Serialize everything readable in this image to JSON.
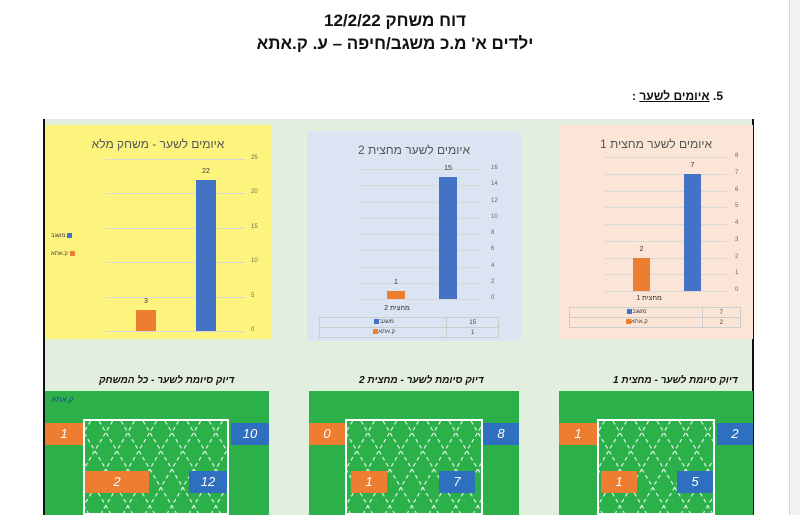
{
  "document": {
    "title": "דוח משחק 12/2/22",
    "subtitle": "ילדים א' מ.כ משגב/חיפה – ע. ק.אתא",
    "section_number": "5.",
    "section_title": "איומים לשער",
    "section_colon": ":"
  },
  "team_labels": {
    "home": "משגב",
    "away": "ק.אתא"
  },
  "colors": {
    "home": "#4472c4",
    "away": "#ed7d31",
    "pitch": "#2bb04a"
  },
  "chart_data": [
    {
      "type": "bar",
      "title": "איומים לשער - משחק מלא",
      "categories": [
        "ק.אתא",
        "משגב"
      ],
      "values": [
        3,
        22
      ],
      "ylim": [
        0,
        25
      ],
      "yticks": [
        "0",
        "5",
        "10",
        "15",
        "20",
        "25"
      ],
      "legend": [
        "משגב",
        "ק.אתא"
      ],
      "background": "#fdf47d"
    },
    {
      "type": "bar",
      "title": "איומים לשער מחצית 2",
      "categories": [
        "ק.אתא",
        "משגב"
      ],
      "values": [
        1,
        15
      ],
      "ylim": [
        0,
        16
      ],
      "yticks": [
        "0",
        "2",
        "4",
        "6",
        "8",
        "10",
        "12",
        "14",
        "16"
      ],
      "category_label": "מחצית 2",
      "table": [
        [
          "משגב",
          "15"
        ],
        [
          "ק.אתא",
          "1"
        ]
      ],
      "background": "#dbe4f2"
    },
    {
      "type": "bar",
      "title": "איומים לשער מחצית 1",
      "categories": [
        "ק.אתא",
        "משגב"
      ],
      "values": [
        2,
        7
      ],
      "ylim": [
        0,
        8
      ],
      "yticks": [
        "0",
        "1",
        "2",
        "3",
        "4",
        "5",
        "6",
        "7",
        "8"
      ],
      "category_label": "מחצית 1",
      "table": [
        [
          "משגב",
          "7"
        ],
        [
          "ק.אתא",
          "2"
        ]
      ],
      "background": "#fbe5d6"
    }
  ],
  "pitches": [
    {
      "title": "דיוק סיומת לשער - כל המשחק",
      "away_off": "1",
      "home_off": "10",
      "away_on": "2",
      "home_on": "12"
    },
    {
      "title": "דיוק סיומת לשער - מחצית 2",
      "away_off": "0",
      "home_off": "8",
      "away_on": "1",
      "home_on": "7"
    },
    {
      "title": "דיוק סיומת לשער - מחצית 1",
      "away_off": "1",
      "home_off": "2",
      "away_on": "1",
      "home_on": "5"
    }
  ]
}
